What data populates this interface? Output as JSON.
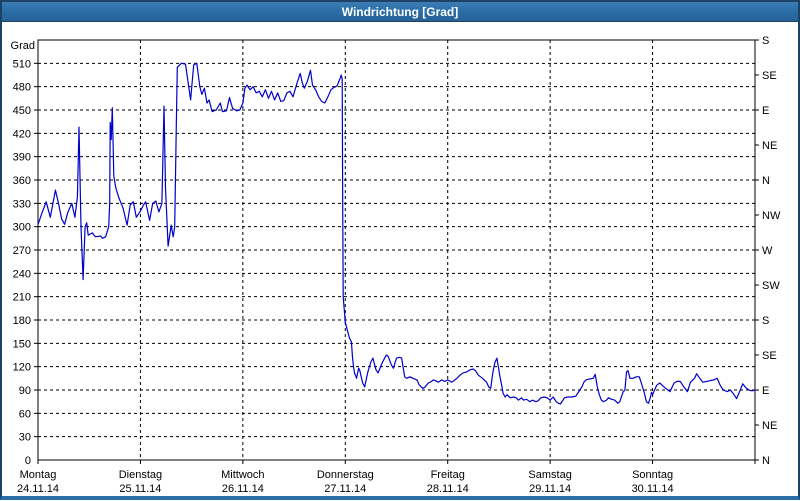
{
  "window": {
    "title": "Windrichtung [Grad]"
  },
  "colors": {
    "titlebar": "#2b6fa9",
    "frame": "#1e4166",
    "line": "#0000cc",
    "grid": "#000000",
    "text": "#000000",
    "background": "#ffffff"
  },
  "axes": {
    "y_left": {
      "label": "Grad",
      "ticks": [
        0,
        30,
        60,
        90,
        120,
        150,
        180,
        210,
        240,
        270,
        300,
        330,
        360,
        390,
        420,
        450,
        480,
        510
      ]
    },
    "y_right": {
      "labels": [
        {
          "value": 540,
          "label": "S"
        },
        {
          "value": 495,
          "label": "SE"
        },
        {
          "value": 450,
          "label": "E"
        },
        {
          "value": 405,
          "label": "NE"
        },
        {
          "value": 360,
          "label": "N"
        },
        {
          "value": 315,
          "label": "NW"
        },
        {
          "value": 270,
          "label": "W"
        },
        {
          "value": 225,
          "label": "SW"
        },
        {
          "value": 180,
          "label": "S"
        },
        {
          "value": 135,
          "label": "SE"
        },
        {
          "value": 90,
          "label": "E"
        },
        {
          "value": 45,
          "label": "NE"
        },
        {
          "value": 0,
          "label": "N"
        }
      ]
    },
    "x": {
      "days": [
        {
          "name": "Montag",
          "date": "24.11.14"
        },
        {
          "name": "Dienstag",
          "date": "25.11.14"
        },
        {
          "name": "Mittwoch",
          "date": "26.11.14"
        },
        {
          "name": "Donnerstag",
          "date": "27.11.14"
        },
        {
          "name": "Freitag",
          "date": "28.11.14"
        },
        {
          "name": "Samstag",
          "date": "29.11.14"
        },
        {
          "name": "Sonntag",
          "date": "30.11.14"
        }
      ]
    }
  },
  "chart_data": {
    "type": "line",
    "title": "Windrichtung [Grad]",
    "ylabel": "Grad",
    "ylim": [
      0,
      540
    ],
    "y_tick_step": 30,
    "x_unit": "days",
    "x_range_days": 7,
    "grid": "dashed",
    "series": [
      {
        "name": "Windrichtung",
        "color": "#0000cc",
        "points": [
          [
            0.0,
            303
          ],
          [
            0.04,
            318
          ],
          [
            0.08,
            332
          ],
          [
            0.12,
            312
          ],
          [
            0.17,
            347
          ],
          [
            0.2,
            330
          ],
          [
            0.23,
            310
          ],
          [
            0.26,
            303
          ],
          [
            0.29,
            318
          ],
          [
            0.33,
            330
          ],
          [
            0.36,
            312
          ],
          [
            0.385,
            338
          ],
          [
            0.4,
            428
          ],
          [
            0.42,
            300
          ],
          [
            0.44,
            232
          ],
          [
            0.46,
            300
          ],
          [
            0.475,
            305
          ],
          [
            0.49,
            289
          ],
          [
            0.53,
            292
          ],
          [
            0.56,
            287
          ],
          [
            0.61,
            288
          ],
          [
            0.63,
            285
          ],
          [
            0.66,
            287
          ],
          [
            0.69,
            300
          ],
          [
            0.7,
            330
          ],
          [
            0.705,
            434
          ],
          [
            0.715,
            412
          ],
          [
            0.725,
            453
          ],
          [
            0.74,
            365
          ],
          [
            0.76,
            350
          ],
          [
            0.79,
            337
          ],
          [
            0.83,
            324
          ],
          [
            0.87,
            302
          ],
          [
            0.9,
            328
          ],
          [
            0.93,
            332
          ],
          [
            0.96,
            312
          ],
          [
            1.0,
            320
          ],
          [
            1.03,
            328
          ],
          [
            1.05,
            332
          ],
          [
            1.09,
            308
          ],
          [
            1.12,
            330
          ],
          [
            1.15,
            333
          ],
          [
            1.18,
            319
          ],
          [
            1.21,
            330
          ],
          [
            1.23,
            455
          ],
          [
            1.245,
            350
          ],
          [
            1.27,
            275
          ],
          [
            1.3,
            302
          ],
          [
            1.32,
            287
          ],
          [
            1.335,
            300
          ],
          [
            1.35,
            430
          ],
          [
            1.36,
            505
          ],
          [
            1.4,
            510
          ],
          [
            1.44,
            509
          ],
          [
            1.46,
            491
          ],
          [
            1.49,
            463
          ],
          [
            1.52,
            508
          ],
          [
            1.55,
            510
          ],
          [
            1.58,
            480
          ],
          [
            1.6,
            470
          ],
          [
            1.625,
            478
          ],
          [
            1.65,
            459
          ],
          [
            1.67,
            463
          ],
          [
            1.7,
            448
          ],
          [
            1.74,
            450
          ],
          [
            1.78,
            459
          ],
          [
            1.8,
            448
          ],
          [
            1.84,
            449
          ],
          [
            1.87,
            466
          ],
          [
            1.9,
            452
          ],
          [
            1.94,
            449
          ],
          [
            1.97,
            450
          ],
          [
            2.0,
            459
          ],
          [
            2.02,
            478
          ],
          [
            2.04,
            482
          ],
          [
            2.07,
            476
          ],
          [
            2.1,
            480
          ],
          [
            2.13,
            472
          ],
          [
            2.16,
            474
          ],
          [
            2.19,
            467
          ],
          [
            2.22,
            476
          ],
          [
            2.25,
            465
          ],
          [
            2.28,
            474
          ],
          [
            2.31,
            463
          ],
          [
            2.34,
            472
          ],
          [
            2.37,
            461
          ],
          [
            2.4,
            462
          ],
          [
            2.43,
            472
          ],
          [
            2.46,
            474
          ],
          [
            2.49,
            467
          ],
          [
            2.53,
            485
          ],
          [
            2.56,
            497
          ],
          [
            2.58,
            485
          ],
          [
            2.6,
            478
          ],
          [
            2.63,
            487
          ],
          [
            2.66,
            501
          ],
          [
            2.68,
            482
          ],
          [
            2.71,
            476
          ],
          [
            2.74,
            467
          ],
          [
            2.77,
            461
          ],
          [
            2.8,
            459
          ],
          [
            2.83,
            467
          ],
          [
            2.86,
            476
          ],
          [
            2.89,
            479
          ],
          [
            2.92,
            481
          ],
          [
            2.95,
            491
          ],
          [
            2.96,
            495
          ],
          [
            2.97,
            490
          ],
          [
            2.975,
            330
          ],
          [
            2.98,
            210
          ],
          [
            3.0,
            177
          ],
          [
            3.02,
            167
          ],
          [
            3.04,
            157
          ],
          [
            3.06,
            152
          ],
          [
            3.07,
            132
          ],
          [
            3.08,
            120
          ],
          [
            3.09,
            112
          ],
          [
            3.11,
            105
          ],
          [
            3.13,
            118
          ],
          [
            3.14,
            116
          ],
          [
            3.17,
            99
          ],
          [
            3.19,
            94
          ],
          [
            3.22,
            113
          ],
          [
            3.25,
            126
          ],
          [
            3.27,
            131
          ],
          [
            3.3,
            116
          ],
          [
            3.32,
            112
          ],
          [
            3.36,
            125
          ],
          [
            3.4,
            135
          ],
          [
            3.42,
            133
          ],
          [
            3.45,
            122
          ],
          [
            3.47,
            118
          ],
          [
            3.5,
            131
          ],
          [
            3.53,
            132
          ],
          [
            3.55,
            131
          ],
          [
            3.58,
            107
          ],
          [
            3.6,
            105
          ],
          [
            3.63,
            107
          ],
          [
            3.66,
            105
          ],
          [
            3.7,
            103
          ],
          [
            3.72,
            97
          ],
          [
            3.74,
            94
          ],
          [
            3.76,
            92
          ],
          [
            3.78,
            94
          ],
          [
            3.81,
            99
          ],
          [
            3.83,
            100
          ],
          [
            3.86,
            103
          ],
          [
            3.88,
            102
          ],
          [
            3.91,
            100
          ],
          [
            3.94,
            103
          ],
          [
            3.97,
            101
          ],
          [
            4.0,
            103
          ],
          [
            4.04,
            100
          ],
          [
            4.07,
            103
          ],
          [
            4.09,
            105
          ],
          [
            4.12,
            109
          ],
          [
            4.15,
            112
          ],
          [
            4.18,
            113
          ],
          [
            4.22,
            116
          ],
          [
            4.25,
            117
          ],
          [
            4.27,
            115
          ],
          [
            4.3,
            109
          ],
          [
            4.34,
            105
          ],
          [
            4.38,
            100
          ],
          [
            4.4,
            94
          ],
          [
            4.42,
            92
          ],
          [
            4.44,
            112
          ],
          [
            4.46,
            125
          ],
          [
            4.48,
            131
          ],
          [
            4.51,
            107
          ],
          [
            4.53,
            94
          ],
          [
            4.54,
            86
          ],
          [
            4.56,
            81
          ],
          [
            4.58,
            84
          ],
          [
            4.61,
            80
          ],
          [
            4.64,
            81
          ],
          [
            4.67,
            80
          ],
          [
            4.69,
            77
          ],
          [
            4.72,
            80
          ],
          [
            4.74,
            77
          ],
          [
            4.77,
            78
          ],
          [
            4.8,
            75
          ],
          [
            4.83,
            77
          ],
          [
            4.86,
            75
          ],
          [
            4.88,
            76
          ],
          [
            4.91,
            80
          ],
          [
            4.94,
            81
          ],
          [
            4.97,
            80
          ],
          [
            5.0,
            77
          ],
          [
            5.03,
            81
          ],
          [
            5.06,
            75
          ],
          [
            5.08,
            73
          ],
          [
            5.1,
            72
          ],
          [
            5.14,
            80
          ],
          [
            5.17,
            81
          ],
          [
            5.21,
            81
          ],
          [
            5.25,
            82
          ],
          [
            5.29,
            90
          ],
          [
            5.31,
            94
          ],
          [
            5.33,
            100
          ],
          [
            5.35,
            103
          ],
          [
            5.38,
            104
          ],
          [
            5.42,
            105
          ],
          [
            5.44,
            110
          ],
          [
            5.46,
            94
          ],
          [
            5.48,
            84
          ],
          [
            5.5,
            77
          ],
          [
            5.52,
            75
          ],
          [
            5.55,
            77
          ],
          [
            5.57,
            80
          ],
          [
            5.6,
            78
          ],
          [
            5.63,
            77
          ],
          [
            5.66,
            73
          ],
          [
            5.68,
            75
          ],
          [
            5.71,
            87
          ],
          [
            5.73,
            90
          ],
          [
            5.745,
            113
          ],
          [
            5.76,
            115
          ],
          [
            5.78,
            105
          ],
          [
            5.81,
            105
          ],
          [
            5.84,
            107
          ],
          [
            5.87,
            107
          ],
          [
            5.89,
            99
          ],
          [
            5.92,
            86
          ],
          [
            5.94,
            75
          ],
          [
            5.96,
            73
          ],
          [
            5.98,
            81
          ],
          [
            5.99,
            87
          ],
          [
            6.0,
            84
          ],
          [
            6.02,
            90
          ],
          [
            6.04,
            96
          ],
          [
            6.07,
            99
          ],
          [
            6.12,
            93
          ],
          [
            6.17,
            88
          ],
          [
            6.21,
            99
          ],
          [
            6.24,
            101
          ],
          [
            6.27,
            101
          ],
          [
            6.3,
            95
          ],
          [
            6.34,
            88
          ],
          [
            6.37,
            100
          ],
          [
            6.41,
            105
          ],
          [
            6.43,
            111
          ],
          [
            6.46,
            105
          ],
          [
            6.49,
            100
          ],
          [
            6.53,
            101
          ],
          [
            6.56,
            102
          ],
          [
            6.6,
            103
          ],
          [
            6.63,
            105
          ],
          [
            6.66,
            96
          ],
          [
            6.69,
            90
          ],
          [
            6.73,
            88
          ],
          [
            6.76,
            90
          ],
          [
            6.79,
            85
          ],
          [
            6.82,
            79
          ],
          [
            6.85,
            88
          ],
          [
            6.88,
            98
          ],
          [
            6.91,
            93
          ],
          [
            6.94,
            90
          ],
          [
            6.97,
            89
          ],
          [
            7.0,
            90
          ]
        ]
      }
    ]
  }
}
